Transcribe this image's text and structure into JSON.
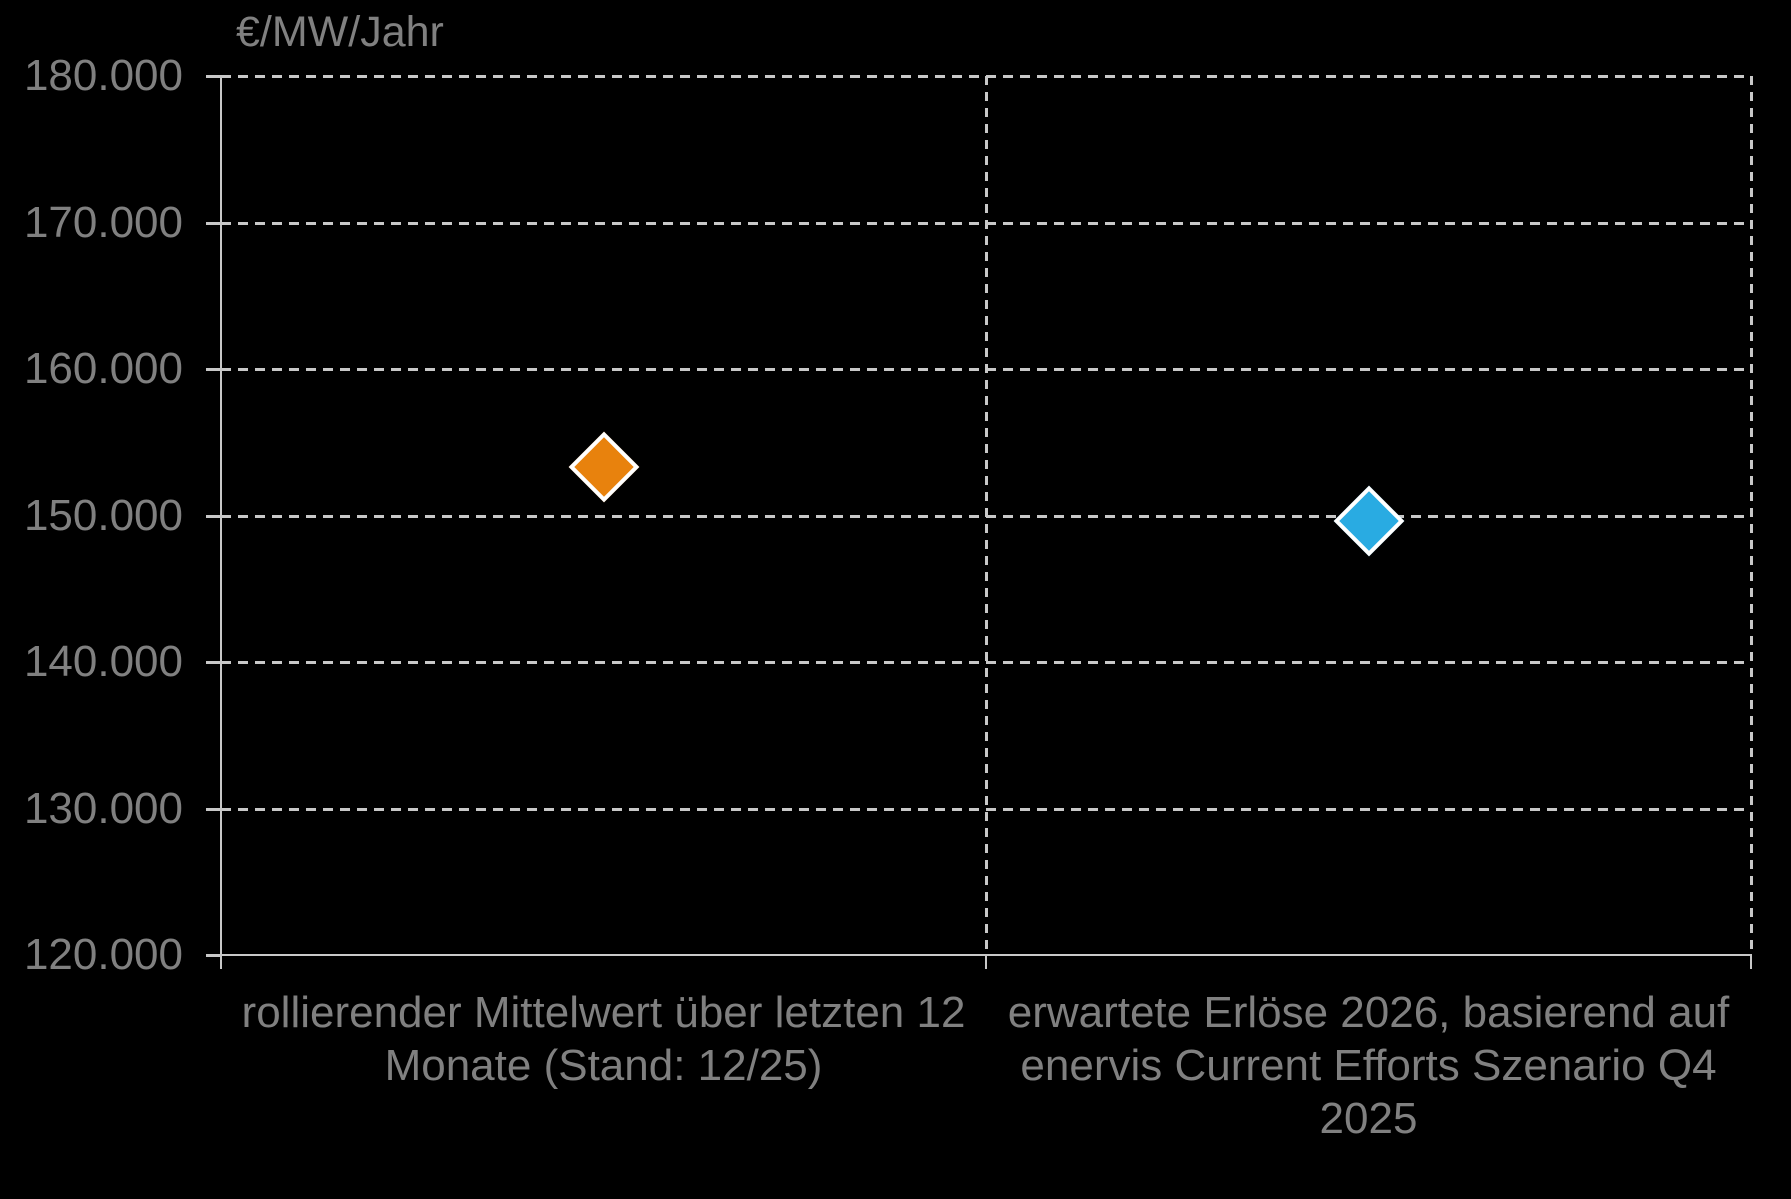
{
  "chart_data": {
    "type": "scatter",
    "title": "",
    "y_axis": {
      "title": "€/MW/Jahr",
      "min": 120000,
      "max": 180000,
      "tick_step": 10000,
      "ticks": [
        {
          "label": "180.000",
          "value": 180000
        },
        {
          "label": "170.000",
          "value": 170000
        },
        {
          "label": "160.000",
          "value": 160000
        },
        {
          "label": "150.000",
          "value": 150000
        },
        {
          "label": "140.000",
          "value": 140000
        },
        {
          "label": "130.000",
          "value": 130000
        },
        {
          "label": "120.000",
          "value": 120000
        }
      ]
    },
    "categories": [
      {
        "lines": [
          "rollierender Mittelwert über letzten 12",
          "Monate (Stand: 12/25)"
        ]
      },
      {
        "lines": [
          "erwartete Erlöse 2026, basierend auf",
          "enervis Current Efforts Szenario Q4",
          "2025"
        ]
      }
    ],
    "points": [
      {
        "category_index": 0,
        "value": 153300,
        "marker": "diamond",
        "color": "#E8820D"
      },
      {
        "category_index": 1,
        "value": 149600,
        "marker": "diamond",
        "color": "#29ABE2"
      }
    ],
    "grid": "dashed",
    "legend": "none",
    "colors": {
      "background": "#000000",
      "axis_line": "#C8C8C8",
      "text": "#808080",
      "marker_outline": "#FFFFFF"
    }
  }
}
